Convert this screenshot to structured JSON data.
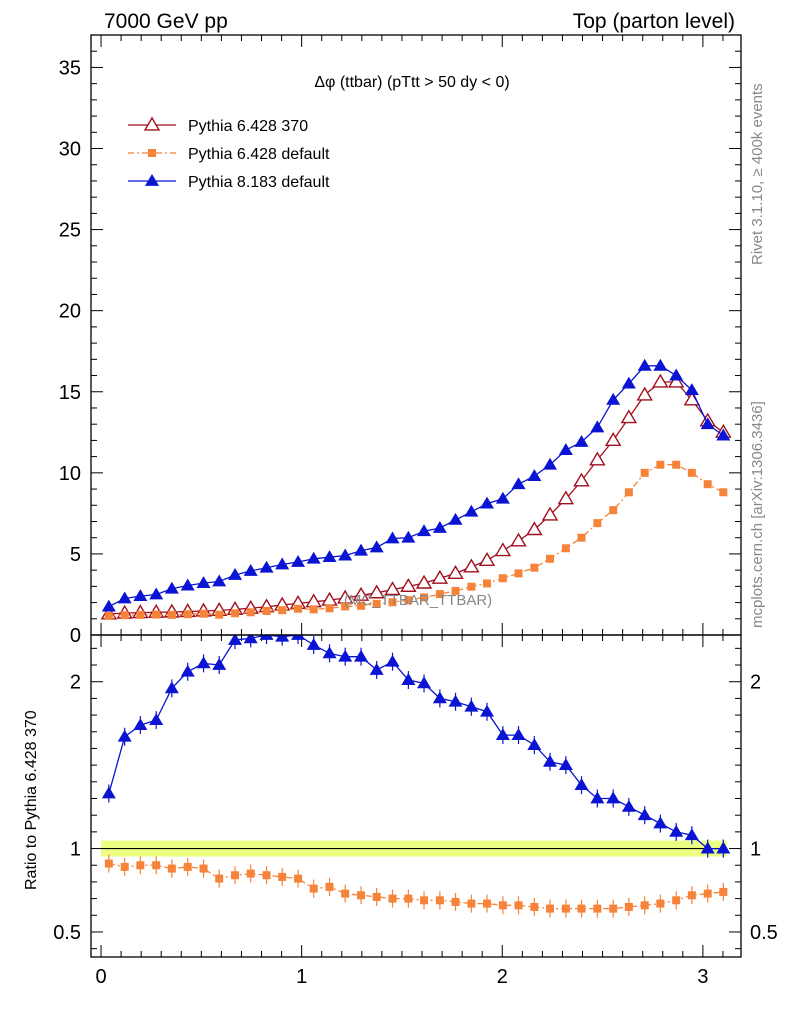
{
  "header": {
    "left": "7000 GeV pp",
    "right": "Top (parton level)"
  },
  "side_labels": {
    "rivet": "Rivet 3.1.10, ≥ 400k events",
    "mcplots": "mcplots.cern.ch [arXiv:1306.3436]"
  },
  "colors": {
    "p6_370": "#a00f1e",
    "p6_default": "#f5843a",
    "p8_default": "#0a14d2",
    "band": "#e6ff59"
  },
  "chart_data": [
    {
      "type": "line",
      "title": "Δφ (ttbar) (pTtt > 50 dy < 0)",
      "watermark": "(MC_TTBAR_TTBAR)",
      "xlim": [
        -0.05,
        3.19
      ],
      "ylim": [
        0,
        37
      ],
      "y_ticks": [
        0,
        5,
        10,
        15,
        20,
        25,
        30,
        35
      ],
      "x": [
        0.039,
        0.118,
        0.196,
        0.275,
        0.353,
        0.432,
        0.511,
        0.589,
        0.668,
        0.746,
        0.825,
        0.903,
        0.982,
        1.06,
        1.139,
        1.217,
        1.296,
        1.374,
        1.453,
        1.532,
        1.61,
        1.689,
        1.767,
        1.846,
        1.924,
        2.003,
        2.081,
        2.16,
        2.238,
        2.317,
        2.395,
        2.474,
        2.553,
        2.631,
        2.71,
        2.788,
        2.867,
        2.945,
        3.024,
        3.102
      ],
      "series": [
        {
          "name": "Pythia 6.428 370",
          "marker": "open-triangle",
          "values": [
            1.3,
            1.35,
            1.38,
            1.4,
            1.42,
            1.45,
            1.48,
            1.52,
            1.58,
            1.65,
            1.74,
            1.85,
            1.95,
            2.05,
            2.15,
            2.28,
            2.45,
            2.6,
            2.8,
            3.0,
            3.2,
            3.5,
            3.8,
            4.2,
            4.6,
            5.2,
            5.8,
            6.5,
            7.4,
            8.4,
            9.5,
            10.8,
            12.0,
            13.4,
            14.8,
            15.6,
            15.6,
            14.5,
            13.2,
            12.5
          ]
        },
        {
          "name": "Pythia 6.428 default",
          "marker": "square",
          "values": [
            1.18,
            1.22,
            1.24,
            1.26,
            1.24,
            1.28,
            1.31,
            1.25,
            1.34,
            1.4,
            1.48,
            1.53,
            1.62,
            1.58,
            1.65,
            1.76,
            1.8,
            1.92,
            2.02,
            2.15,
            2.32,
            2.52,
            2.72,
            2.98,
            3.18,
            3.5,
            3.8,
            4.15,
            4.7,
            5.35,
            6.0,
            6.9,
            7.7,
            8.8,
            10.0,
            10.5,
            10.5,
            10.0,
            9.3,
            8.8
          ]
        },
        {
          "name": "Pythia 8.183 default",
          "marker": "filled-triangle",
          "values": [
            1.75,
            2.25,
            2.4,
            2.5,
            2.85,
            3.05,
            3.2,
            3.3,
            3.7,
            3.95,
            4.15,
            4.35,
            4.5,
            4.7,
            4.8,
            4.9,
            5.2,
            5.4,
            5.95,
            6.0,
            6.4,
            6.6,
            7.1,
            7.6,
            8.1,
            8.4,
            9.3,
            9.8,
            10.5,
            11.4,
            11.9,
            12.8,
            14.5,
            15.5,
            16.6,
            16.6,
            16.0,
            15.1,
            13.0,
            12.3
          ]
        }
      ]
    },
    {
      "type": "line",
      "ylabel": "Ratio to Pythia 6.428 370",
      "xlim": [
        -0.05,
        3.19
      ],
      "ylim": [
        0.35,
        2.28
      ],
      "y_ticks": [
        0.5,
        1,
        2
      ],
      "x_ticks": [
        0,
        1,
        2,
        3
      ],
      "x": [
        0.039,
        0.118,
        0.196,
        0.275,
        0.353,
        0.432,
        0.511,
        0.589,
        0.668,
        0.746,
        0.825,
        0.903,
        0.982,
        1.06,
        1.139,
        1.217,
        1.296,
        1.374,
        1.453,
        1.532,
        1.61,
        1.689,
        1.767,
        1.846,
        1.924,
        2.003,
        2.081,
        2.16,
        2.238,
        2.317,
        2.395,
        2.474,
        2.553,
        2.631,
        2.71,
        2.788,
        2.867,
        2.945,
        3.024,
        3.102
      ],
      "reference": 1.0,
      "series": [
        {
          "name": "Pythia 6.428 default",
          "marker": "square",
          "values": [
            0.91,
            0.89,
            0.9,
            0.9,
            0.88,
            0.89,
            0.88,
            0.82,
            0.84,
            0.85,
            0.84,
            0.83,
            0.82,
            0.76,
            0.77,
            0.73,
            0.72,
            0.71,
            0.7,
            0.7,
            0.69,
            0.69,
            0.68,
            0.67,
            0.67,
            0.66,
            0.66,
            0.65,
            0.64,
            0.64,
            0.64,
            0.64,
            0.64,
            0.65,
            0.66,
            0.67,
            0.69,
            0.72,
            0.73,
            0.74
          ]
        },
        {
          "name": "Pythia 8.183 default",
          "marker": "filled-triangle",
          "values": [
            1.33,
            1.67,
            1.74,
            1.77,
            1.96,
            2.06,
            2.11,
            2.1,
            2.25,
            2.26,
            2.28,
            2.27,
            2.28,
            2.22,
            2.17,
            2.15,
            2.15,
            2.07,
            2.12,
            2.01,
            1.99,
            1.9,
            1.88,
            1.85,
            1.82,
            1.68,
            1.68,
            1.62,
            1.52,
            1.5,
            1.38,
            1.3,
            1.3,
            1.25,
            1.2,
            1.15,
            1.1,
            1.08,
            1.0,
            1.0
          ]
        }
      ]
    }
  ]
}
